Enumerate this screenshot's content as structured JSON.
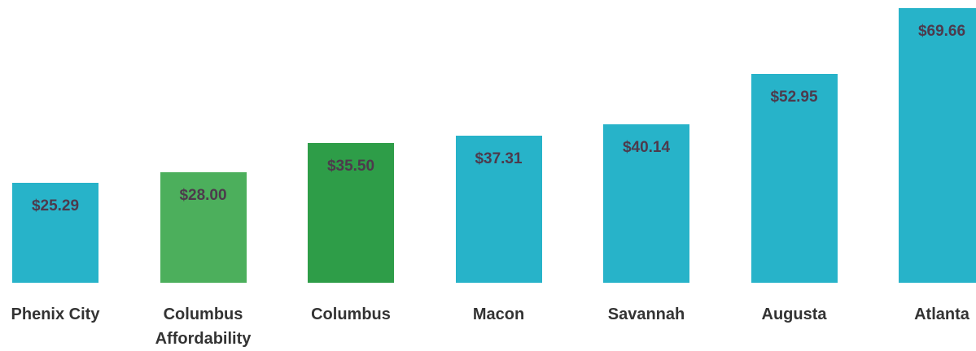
{
  "chart_data": {
    "type": "bar",
    "categories": [
      "Phenix City",
      "Columbus Affordability",
      "Columbus",
      "Macon",
      "Savannah",
      "Augusta",
      "Atlanta"
    ],
    "values": [
      25.29,
      28.0,
      35.5,
      37.31,
      40.14,
      52.95,
      69.66
    ],
    "value_labels": [
      "$25.29",
      "$28.00",
      "$35.50",
      "$37.31",
      "$40.14",
      "$52.95",
      "$69.66"
    ],
    "colors": [
      "#27b3c9",
      "#4caf5c",
      "#2e9d48",
      "#27b3c9",
      "#27b3c9",
      "#27b3c9",
      "#27b3c9"
    ]
  }
}
